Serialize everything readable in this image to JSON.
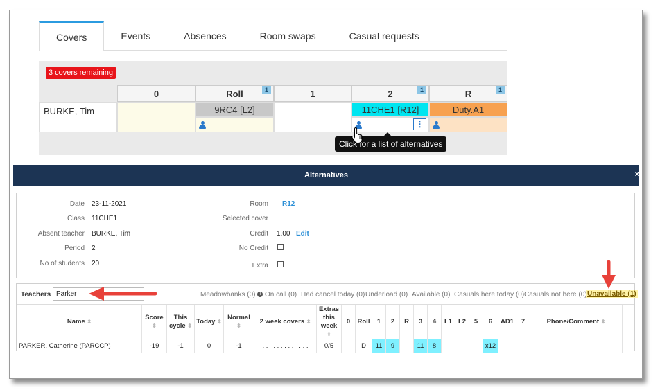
{
  "tabs": [
    {
      "label": "Covers",
      "active": true
    },
    {
      "label": "Events",
      "active": false
    },
    {
      "label": "Absences",
      "active": false
    },
    {
      "label": "Room swaps",
      "active": false
    },
    {
      "label": "Casual requests",
      "active": false
    }
  ],
  "covers": {
    "remaining_label": "3 covers remaining",
    "periods": [
      {
        "label": "0",
        "badge": ""
      },
      {
        "label": "Roll",
        "badge": "1"
      },
      {
        "label": "1",
        "badge": ""
      },
      {
        "label": "2",
        "badge": "1"
      },
      {
        "label": "R",
        "badge": "1"
      }
    ],
    "teacher": "BURKE, Tim",
    "slots": [
      "",
      "9RC4 [L2]",
      "",
      "11CHE1 [R12]",
      "Duty.A1"
    ],
    "kebab": "⋮",
    "tooltip": "Click for a list of alternatives"
  },
  "alternatives": {
    "title": "Alternatives",
    "close": "×",
    "details": {
      "date_label": "Date",
      "date": "23-11-2021",
      "class_label": "Class",
      "class": "11CHE1",
      "absent_label": "Absent teacher",
      "absent": "BURKE, Tim",
      "period_label": "Period",
      "period": "2",
      "students_label": "No of students",
      "students": "20",
      "room_label": "Room",
      "room": "R12",
      "selected_label": "Selected cover",
      "selected": "",
      "credit_label": "Credit",
      "credit": "1.00",
      "credit_edit": "Edit",
      "nocredit_label": "No Credit",
      "extra_label": "Extra"
    },
    "filter": {
      "label": "Teachers",
      "value": "Parker",
      "meadowbanks": "Meadowbanks (0)",
      "oncall": "On call (0)",
      "hadcancel": "Had cancel today (0)",
      "underload": "Underload (0)",
      "available": "Available (0)",
      "casuals_here": "Casuals here today (0)",
      "casuals_not": "Casuals not here (0)",
      "unavailable": "Unavailable (1)"
    },
    "table": {
      "headers": {
        "name": "Name",
        "score": "Score",
        "thiscycle1": "This",
        "thiscycle2": "cycle",
        "today": "Today",
        "normal": "Normal",
        "twoweek": "2 week covers",
        "extras1": "Extras",
        "extras2": "this",
        "extras3": "week",
        "p0": "0",
        "roll": "Roll",
        "p1": "1",
        "p2": "2",
        "r": "R",
        "p3": "3",
        "p4": "4",
        "l1": "L1",
        "l2": "L2",
        "p5": "5",
        "p6": "6",
        "ad1": "AD1",
        "p7": "7",
        "phone": "Phone/Comment"
      },
      "row": {
        "name": "PARKER, Catherine (PARCCP)",
        "score": "-19",
        "thiscycle": "-1",
        "today": "0",
        "normal": "-1",
        "twoweek": ". .   . . . . . .   . . .",
        "extras": "0/5",
        "p0": "",
        "roll": "D",
        "p1": "11",
        "p2": "9",
        "r": "",
        "p3": "11",
        "p4": "8",
        "l1": "",
        "l2": "",
        "p5": "",
        "p6": "x12",
        "ad1": "",
        "p7": "",
        "phone": ""
      }
    }
  },
  "colors": {
    "accent": "#2b9be0",
    "danger": "#e8141a",
    "navy": "#1c3454",
    "cyan": "#00e5f0",
    "orange": "#f7a150",
    "grey_slot": "#c8c8c8",
    "light_yellow": "#fdfbe8",
    "arrow": "#e8413a"
  }
}
